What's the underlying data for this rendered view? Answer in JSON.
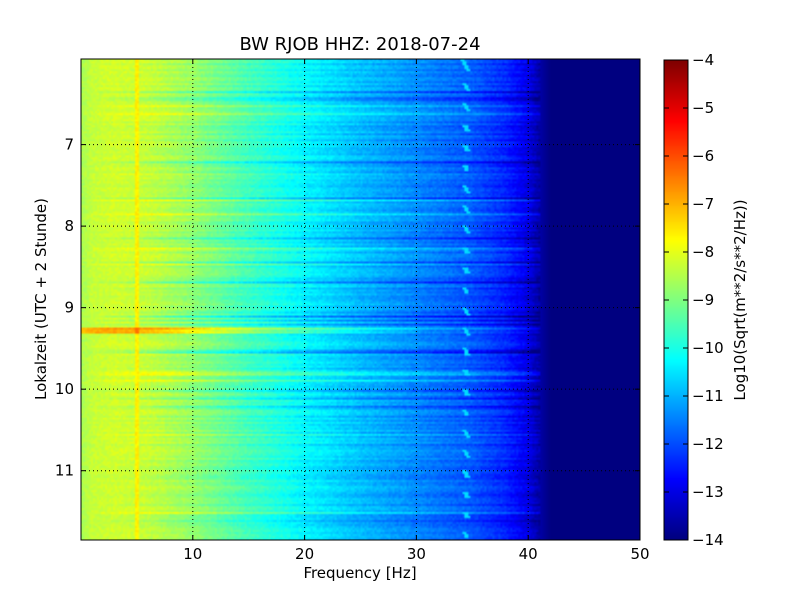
{
  "chart_data": {
    "type": "heatmap",
    "title": "BW RJOB HHZ: 2018-07-24",
    "xlabel": "Frequency [Hz]",
    "ylabel": "Lokalzeit (UTC + 2 Stunde)",
    "xlim": [
      0,
      50
    ],
    "ylim": [
      5.95,
      11.85
    ],
    "y_inverted": true,
    "x_ticks": [
      10,
      20,
      30,
      40,
      50
    ],
    "x_tick_labels": [
      "10",
      "20",
      "30",
      "40",
      "50"
    ],
    "y_ticks": [
      7,
      8,
      9,
      10,
      11
    ],
    "y_tick_labels": [
      "7",
      "8",
      "9",
      "10",
      "11"
    ],
    "grid": true,
    "colormap": "jet",
    "colorbar": {
      "label": "Log10(Sqrt(m**2/s**2/Hz))",
      "range": [
        -14,
        -4
      ],
      "ticks": [
        -4,
        -5,
        -6,
        -7,
        -8,
        -9,
        -10,
        -11,
        -12,
        -13,
        -14
      ],
      "tick_labels": [
        "−4",
        "−5",
        "−6",
        "−7",
        "−8",
        "−9",
        "−10",
        "−11",
        "−12",
        "−13",
        "−14"
      ]
    },
    "spectral_profile": {
      "frequency_hz": [
        0,
        1,
        3,
        6,
        10,
        15,
        20,
        25,
        30,
        35,
        38,
        40,
        41,
        42,
        50
      ],
      "level": [
        -8.6,
        -8.3,
        -8.2,
        -8.3,
        -8.8,
        -9.6,
        -10.3,
        -10.9,
        -11.4,
        -11.9,
        -12.4,
        -13.0,
        -13.6,
        -14,
        -14
      ]
    },
    "annotations": [
      {
        "description": "narrow spectral line",
        "frequency_hz": 5.0,
        "level": -7.6
      },
      {
        "description": "broadband event",
        "time_hours": 9.28,
        "level_offset": 1.4
      },
      {
        "description": "recurring transient near",
        "frequency_hz": 34.3,
        "level": -10.6
      }
    ]
  }
}
